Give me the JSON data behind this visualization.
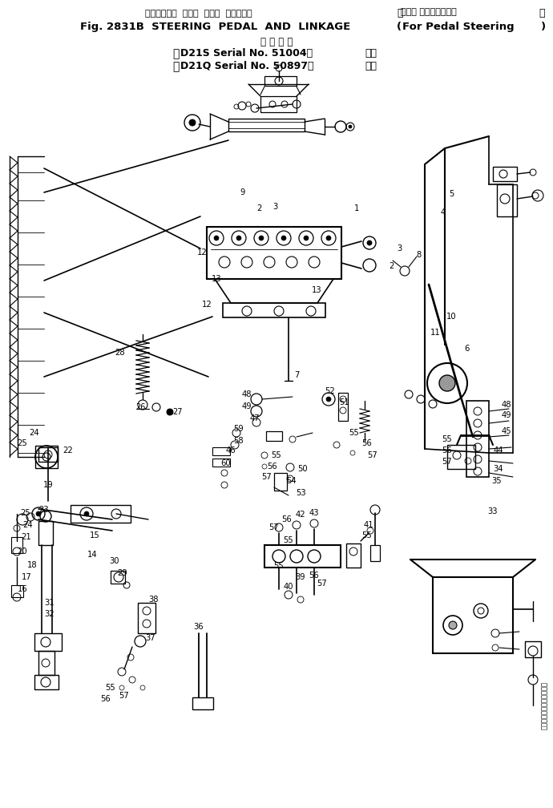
{
  "bg_color": "#ffffff",
  "fig_width": 6.9,
  "fig_height": 10.08,
  "dpi": 100,
  "title_line1_jp": "ステアリング  ペダル  および  リンケージ",
  "title_line1_jp2": "（ペダル ステアリング用）",
  "title_line2_en1": "Fig. 2831B  STEERING  PEDAL  AND  LINKAGE",
  "title_line2_en2": "(For Pedal Steering)",
  "subtitle_jp": "適 用 号 機",
  "subtitle_d21s": "D21S Serial No. 51004～",
  "subtitle_d21q": "D21Q Serial No. 50897～"
}
